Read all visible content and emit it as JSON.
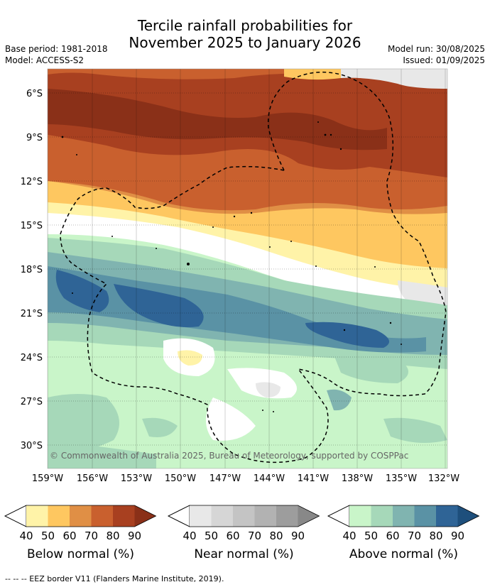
{
  "title_line1": "Tercile rainfall probabilities for",
  "title_line2": "November 2025 to January 2026",
  "base_period": "Base period: 1981-2018",
  "model": "Model: ACCESS-S2",
  "model_run": "Model run: 30/08/2025",
  "issued": "Issued: 01/09/2025",
  "copyright": "© Commonwealth of Australia 2025, Bureau of Meteorology, supported by COSPPac",
  "lat_ticks": [
    "6°S",
    "9°S",
    "12°S",
    "15°S",
    "18°S",
    "21°S",
    "24°S",
    "27°S",
    "30°S"
  ],
  "lon_ticks": [
    "159°W",
    "156°W",
    "153°W",
    "150°W",
    "147°W",
    "144°W",
    "141°W",
    "138°W",
    "135°W",
    "132°W"
  ],
  "colorbars": [
    {
      "name": "below",
      "label": "Below normal (%)",
      "ticks": [
        "40",
        "50",
        "60",
        "70",
        "80",
        "90"
      ],
      "colors": [
        "#fff3a8",
        "#fec760",
        "#e08f45",
        "#c9602e",
        "#a84020",
        "#8a3018"
      ]
    },
    {
      "name": "near",
      "label": "Near normal (%)",
      "ticks": [
        "40",
        "50",
        "60",
        "70",
        "80",
        "90"
      ],
      "colors": [
        "#e8e8e8",
        "#d6d6d6",
        "#c4c4c4",
        "#b2b2b2",
        "#9d9d9d",
        "#888888"
      ]
    },
    {
      "name": "above",
      "label": "Above normal (%)",
      "ticks": [
        "40",
        "50",
        "60",
        "70",
        "80",
        "90"
      ],
      "colors": [
        "#c9f5c9",
        "#a6d8b9",
        "#80b4b0",
        "#5a92a5",
        "#2f6496",
        "#1e4f7c"
      ]
    }
  ],
  "legend_eez": "-- -- -- EEZ border V11 (Flanders Marine Institute, 2019)."
}
